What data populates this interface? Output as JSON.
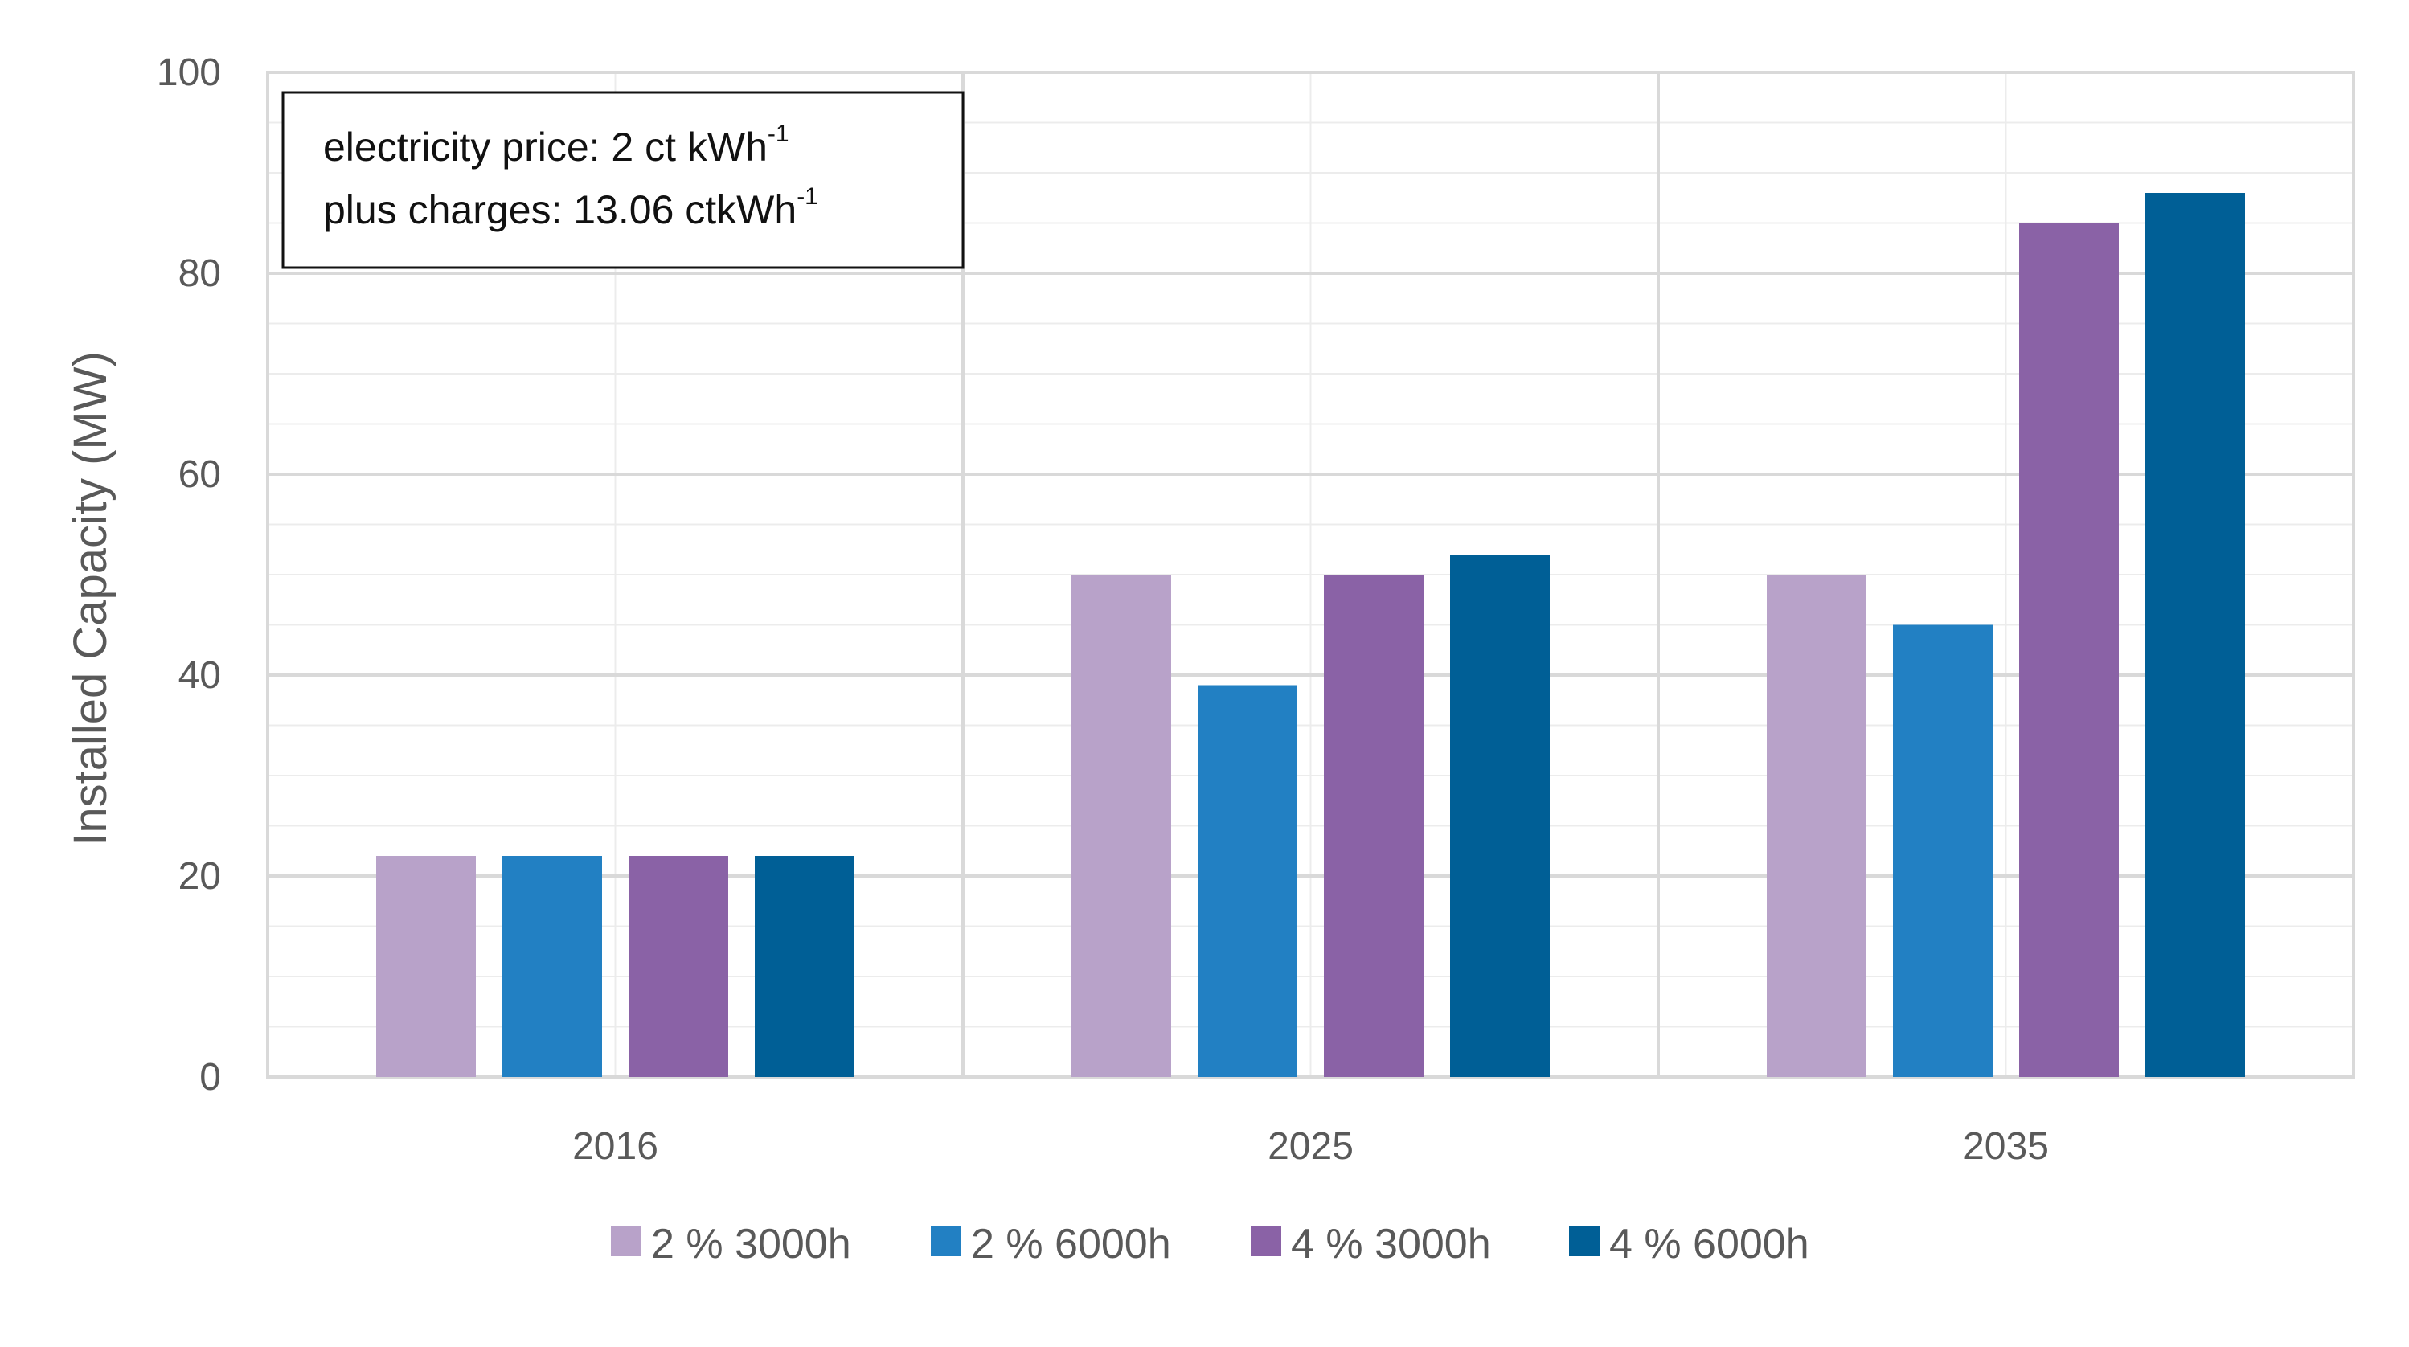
{
  "chart_data": {
    "type": "bar",
    "categories": [
      "2016",
      "2025",
      "2035"
    ],
    "series": [
      {
        "name": "2 % 3000h",
        "color": "#b8a2c9",
        "values": [
          22,
          50,
          50
        ]
      },
      {
        "name": "2 % 6000h",
        "color": "#2280c3",
        "values": [
          22,
          39,
          45
        ]
      },
      {
        "name": "4 % 3000h",
        "color": "#8a62a6",
        "values": [
          22,
          50,
          85
        ]
      },
      {
        "name": "4 % 6000h",
        "color": "#005f96",
        "values": [
          22,
          52,
          88
        ]
      }
    ],
    "title": "",
    "xlabel": "",
    "ylabel": "Installed Capacity (MW)",
    "ylim": [
      0,
      100
    ],
    "yticks": [
      "0",
      "20",
      "40",
      "60",
      "80",
      "100"
    ],
    "grid": true,
    "legend_position": "bottom",
    "annotation": {
      "line1": {
        "text": "electricity price: 2 ct kWh",
        "sup": "-1"
      },
      "line2": {
        "text": "plus charges: 13.06 ctkWh",
        "sup": "-1"
      }
    }
  }
}
